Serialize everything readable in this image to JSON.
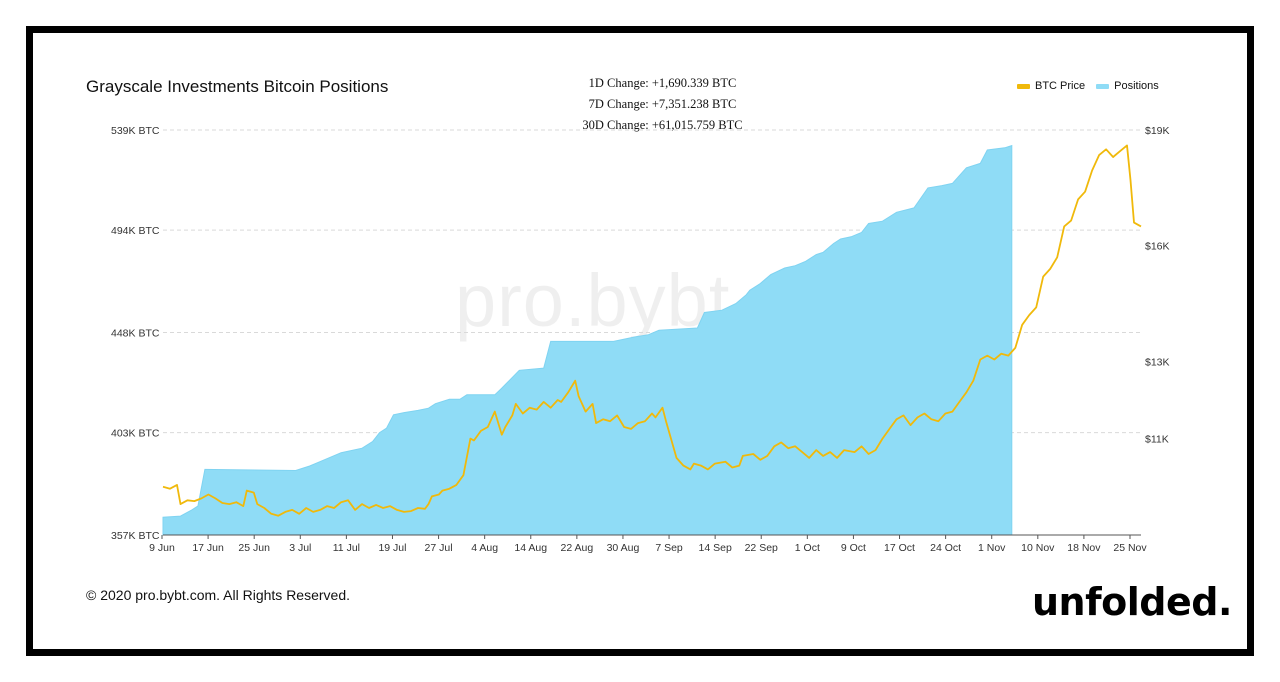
{
  "chart_data": {
    "type": "area",
    "title": "Grayscale Investments Bitcoin Positions",
    "annotations": [
      "1D Change: +1,690.339 BTC",
      "7D Change: +7,351.238 BTC",
      "30D Change: +61,015.759 BTC"
    ],
    "watermark": "pro.bybt.com",
    "legend_position": "top-right",
    "grid": true,
    "x_tick_labels": [
      "9 Jun",
      "17 Jun",
      "25 Jun",
      "3 Jul",
      "11 Jul",
      "19 Jul",
      "27 Jul",
      "4 Aug",
      "14 Aug",
      "22 Aug",
      "30 Aug",
      "7 Sep",
      "14 Sep",
      "22 Sep",
      "1 Oct",
      "9 Oct",
      "17 Oct",
      "24 Oct",
      "1 Nov",
      "10 Nov",
      "18 Nov",
      "25 Nov"
    ],
    "y_left": {
      "tick_labels": [
        "539K BTC",
        "494K BTC",
        "448K BTC",
        "403K BTC",
        "357K BTC"
      ],
      "range": [
        357,
        539
      ],
      "unit": "K BTC"
    },
    "y_right": {
      "tick_labels": [
        "$19K",
        "$16K",
        "$13K",
        "$11K"
      ],
      "range": [
        8500,
        19000
      ],
      "ticks": [
        19000,
        16000,
        13000,
        11000
      ]
    },
    "days": 171,
    "series": [
      {
        "name": "Positions",
        "axis": "left",
        "color": "#8fdcf6",
        "points": [
          [
            0,
            365
          ],
          [
            5,
            365.5
          ],
          [
            8,
            368
          ],
          [
            10,
            370
          ],
          [
            12,
            386.5
          ],
          [
            38,
            386
          ],
          [
            42,
            388
          ],
          [
            45,
            390
          ],
          [
            51,
            394
          ],
          [
            57,
            396
          ],
          [
            60,
            399
          ],
          [
            62,
            403
          ],
          [
            64,
            405
          ],
          [
            66,
            411
          ],
          [
            69,
            412
          ],
          [
            73,
            413
          ],
          [
            76,
            414
          ],
          [
            78,
            416
          ],
          [
            82,
            418
          ],
          [
            85,
            418
          ],
          [
            87,
            420
          ],
          [
            95,
            420
          ],
          [
            97,
            423
          ],
          [
            102,
            431
          ],
          [
            109,
            432
          ],
          [
            111,
            444
          ],
          [
            129,
            444
          ],
          [
            135,
            446
          ],
          [
            139,
            447
          ],
          [
            142,
            449
          ],
          [
            153,
            450
          ],
          [
            155,
            457
          ],
          [
            160,
            458
          ],
          [
            164,
            461
          ],
          [
            167,
            465
          ],
          [
            168,
            467
          ],
          [
            170,
            469
          ],
          [
            171,
            470
          ],
          [
            174,
            474
          ],
          [
            178,
            477
          ],
          [
            181,
            478
          ],
          [
            184,
            480
          ],
          [
            187,
            483
          ],
          [
            189,
            484
          ],
          [
            192,
            488
          ],
          [
            194,
            490
          ],
          [
            197,
            491
          ],
          [
            200,
            493
          ],
          [
            202,
            497
          ],
          [
            206,
            498
          ],
          [
            210,
            502
          ],
          [
            215,
            504
          ],
          [
            219,
            513
          ],
          [
            223,
            514
          ],
          [
            226,
            515
          ],
          [
            230,
            522
          ],
          [
            234,
            524
          ],
          [
            236,
            530
          ],
          [
            241,
            531
          ],
          [
            243,
            532
          ]
        ]
      },
      {
        "name": "BTC Price",
        "axis": "right",
        "color": "#f0b90b",
        "points": [
          [
            0,
            9750
          ],
          [
            2,
            9700
          ],
          [
            4,
            9800
          ],
          [
            5,
            9300
          ],
          [
            7,
            9400
          ],
          [
            9,
            9380
          ],
          [
            11,
            9450
          ],
          [
            13,
            9550
          ],
          [
            15,
            9450
          ],
          [
            17,
            9330
          ],
          [
            19,
            9300
          ],
          [
            21,
            9350
          ],
          [
            23,
            9250
          ],
          [
            24,
            9650
          ],
          [
            26,
            9600
          ],
          [
            27,
            9300
          ],
          [
            29,
            9200
          ],
          [
            31,
            9050
          ],
          [
            33,
            9000
          ],
          [
            35,
            9100
          ],
          [
            37,
            9150
          ],
          [
            39,
            9050
          ],
          [
            41,
            9200
          ],
          [
            43,
            9100
          ],
          [
            45,
            9150
          ],
          [
            47,
            9250
          ],
          [
            49,
            9200
          ],
          [
            51,
            9350
          ],
          [
            53,
            9400
          ],
          [
            55,
            9150
          ],
          [
            57,
            9300
          ],
          [
            59,
            9200
          ],
          [
            61,
            9280
          ],
          [
            63,
            9200
          ],
          [
            65,
            9250
          ],
          [
            67,
            9150
          ],
          [
            69,
            9100
          ],
          [
            71,
            9120
          ],
          [
            73,
            9200
          ],
          [
            75,
            9180
          ],
          [
            76,
            9300
          ],
          [
            77,
            9500
          ],
          [
            79,
            9550
          ],
          [
            80,
            9650
          ],
          [
            82,
            9700
          ],
          [
            84,
            9800
          ],
          [
            86,
            10050
          ],
          [
            88,
            11000
          ],
          [
            89,
            10950
          ],
          [
            91,
            11200
          ],
          [
            93,
            11300
          ],
          [
            95,
            11700
          ],
          [
            97,
            11100
          ],
          [
            98,
            11300
          ],
          [
            100,
            11600
          ],
          [
            101,
            11900
          ],
          [
            103,
            11650
          ],
          [
            105,
            11800
          ],
          [
            107,
            11750
          ],
          [
            109,
            11950
          ],
          [
            111,
            11800
          ],
          [
            113,
            12000
          ],
          [
            114,
            11950
          ],
          [
            116,
            12200
          ],
          [
            117,
            12350
          ],
          [
            118,
            12500
          ],
          [
            119,
            12100
          ],
          [
            121,
            11700
          ],
          [
            123,
            11900
          ],
          [
            124,
            11400
          ],
          [
            126,
            11500
          ],
          [
            128,
            11450
          ],
          [
            130,
            11600
          ],
          [
            132,
            11300
          ],
          [
            134,
            11250
          ],
          [
            136,
            11400
          ],
          [
            138,
            11450
          ],
          [
            140,
            11650
          ],
          [
            141,
            11550
          ],
          [
            143,
            11800
          ],
          [
            144,
            11450
          ],
          [
            147,
            10500
          ],
          [
            149,
            10300
          ],
          [
            151,
            10200
          ],
          [
            152,
            10350
          ],
          [
            154,
            10300
          ],
          [
            156,
            10200
          ],
          [
            158,
            10350
          ],
          [
            161,
            10400
          ],
          [
            163,
            10250
          ],
          [
            165,
            10300
          ],
          [
            166,
            10550
          ],
          [
            169,
            10600
          ],
          [
            171,
            10450
          ],
          [
            173,
            10550
          ],
          [
            175,
            10800
          ],
          [
            177,
            10900
          ],
          [
            179,
            10750
          ],
          [
            181,
            10800
          ],
          [
            183,
            10650
          ],
          [
            185,
            10500
          ],
          [
            187,
            10700
          ],
          [
            189,
            10550
          ],
          [
            191,
            10650
          ],
          [
            193,
            10500
          ],
          [
            195,
            10700
          ],
          [
            198,
            10650
          ],
          [
            200,
            10800
          ],
          [
            202,
            10600
          ],
          [
            204,
            10700
          ],
          [
            206,
            11000
          ],
          [
            208,
            11250
          ],
          [
            210,
            11500
          ],
          [
            212,
            11600
          ],
          [
            214,
            11350
          ],
          [
            216,
            11550
          ],
          [
            218,
            11650
          ],
          [
            220,
            11500
          ],
          [
            222,
            11450
          ],
          [
            224,
            11650
          ],
          [
            226,
            11700
          ],
          [
            228,
            11950
          ],
          [
            230,
            12200
          ],
          [
            232,
            12500
          ],
          [
            234,
            13050
          ],
          [
            236,
            13150
          ],
          [
            238,
            13050
          ],
          [
            240,
            13200
          ],
          [
            242,
            13150
          ],
          [
            244,
            13350
          ],
          [
            246,
            13950
          ],
          [
            248,
            14200
          ],
          [
            250,
            14400
          ],
          [
            252,
            15200
          ],
          [
            254,
            15400
          ],
          [
            256,
            15700
          ],
          [
            258,
            16500
          ],
          [
            260,
            16650
          ],
          [
            262,
            17200
          ],
          [
            264,
            17400
          ],
          [
            266,
            17950
          ],
          [
            268,
            18350
          ],
          [
            270,
            18500
          ],
          [
            272,
            18300
          ],
          [
            274,
            18450
          ],
          [
            276,
            18600
          ],
          [
            277,
            17700
          ],
          [
            278,
            16600
          ],
          [
            280,
            16500
          ]
        ]
      }
    ]
  },
  "footer": {
    "copyright": "© 2020 pro.bybt.com. All Rights Reserved.",
    "brand": "unfolded."
  }
}
